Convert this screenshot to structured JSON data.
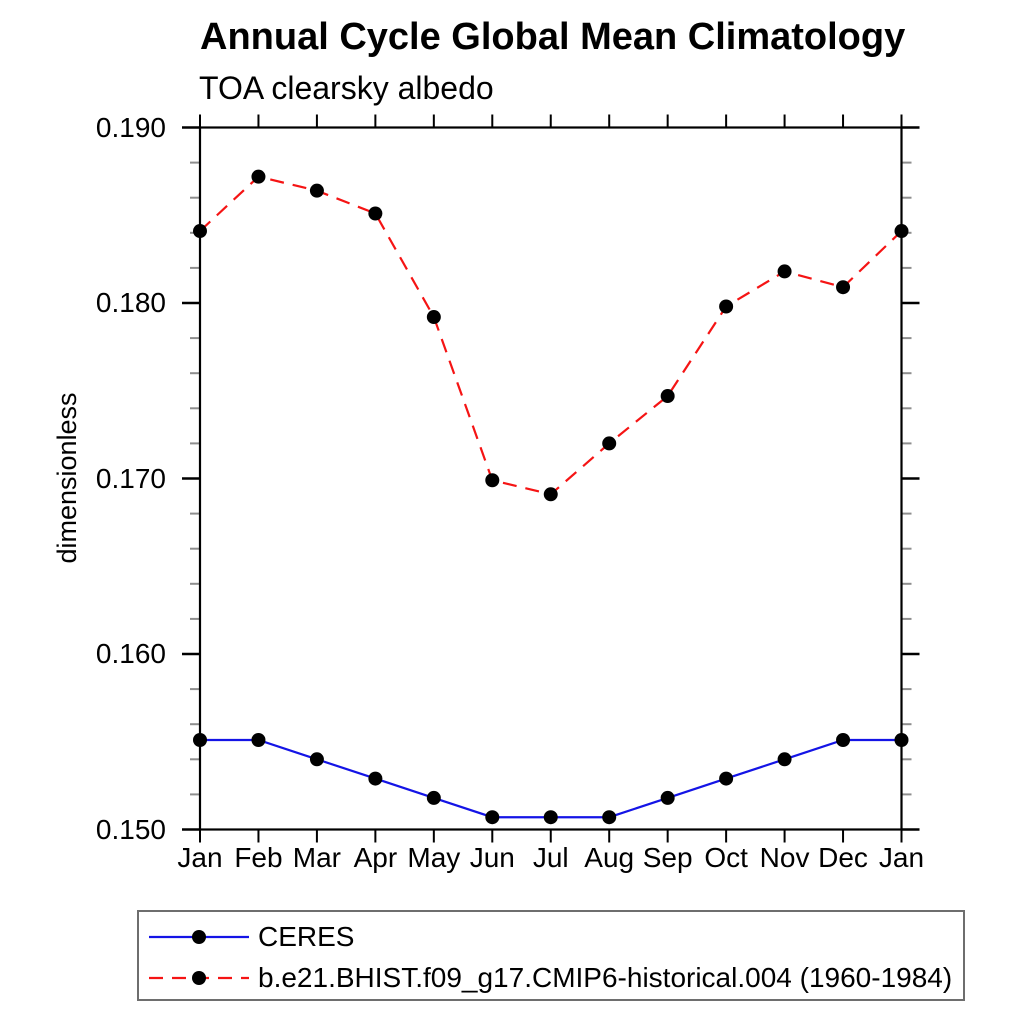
{
  "title": "Annual Cycle Global Mean Climatology",
  "subtitle": "TOA clearsky albedo",
  "ylabel": "dimensionless",
  "style": {
    "background": "#ffffff",
    "axis_color": "#000000",
    "minor_tick_color": "#8e8e8e",
    "text_color": "#000000",
    "legend_border_color": "#6e6e6e",
    "marker_color": "#000000"
  },
  "chart_data": {
    "type": "line",
    "categories": [
      "Jan",
      "Feb",
      "Mar",
      "Apr",
      "May",
      "Jun",
      "Jul",
      "Aug",
      "Sep",
      "Oct",
      "Nov",
      "Dec",
      "Jan"
    ],
    "series": [
      {
        "name": "CERES",
        "color": "#1414e6",
        "line_style": "solid",
        "marker": "filled-circle",
        "values": [
          0.1551,
          0.1551,
          0.154,
          0.1529,
          0.1518,
          0.1507,
          0.1507,
          0.1507,
          0.1518,
          0.1529,
          0.154,
          0.1551,
          0.1551
        ]
      },
      {
        "name": "b.e21.BHIST.f09_g17.CMIP6-historical.004 (1960-1984)",
        "color": "#f51414",
        "line_style": "dashed",
        "marker": "filled-circle",
        "values": [
          0.1841,
          0.1872,
          0.1864,
          0.1851,
          0.1792,
          0.1699,
          0.1691,
          0.172,
          0.1747,
          0.1798,
          0.1818,
          0.1809,
          0.1841
        ]
      }
    ],
    "xlabel": "",
    "ylim": [
      0.15,
      0.19
    ],
    "yticks": [
      0.15,
      0.16,
      0.17,
      0.18,
      0.19
    ],
    "ytick_decimals": 3,
    "y_minor_step": 0.002,
    "grid": false,
    "legend_position": "bottom-left"
  }
}
